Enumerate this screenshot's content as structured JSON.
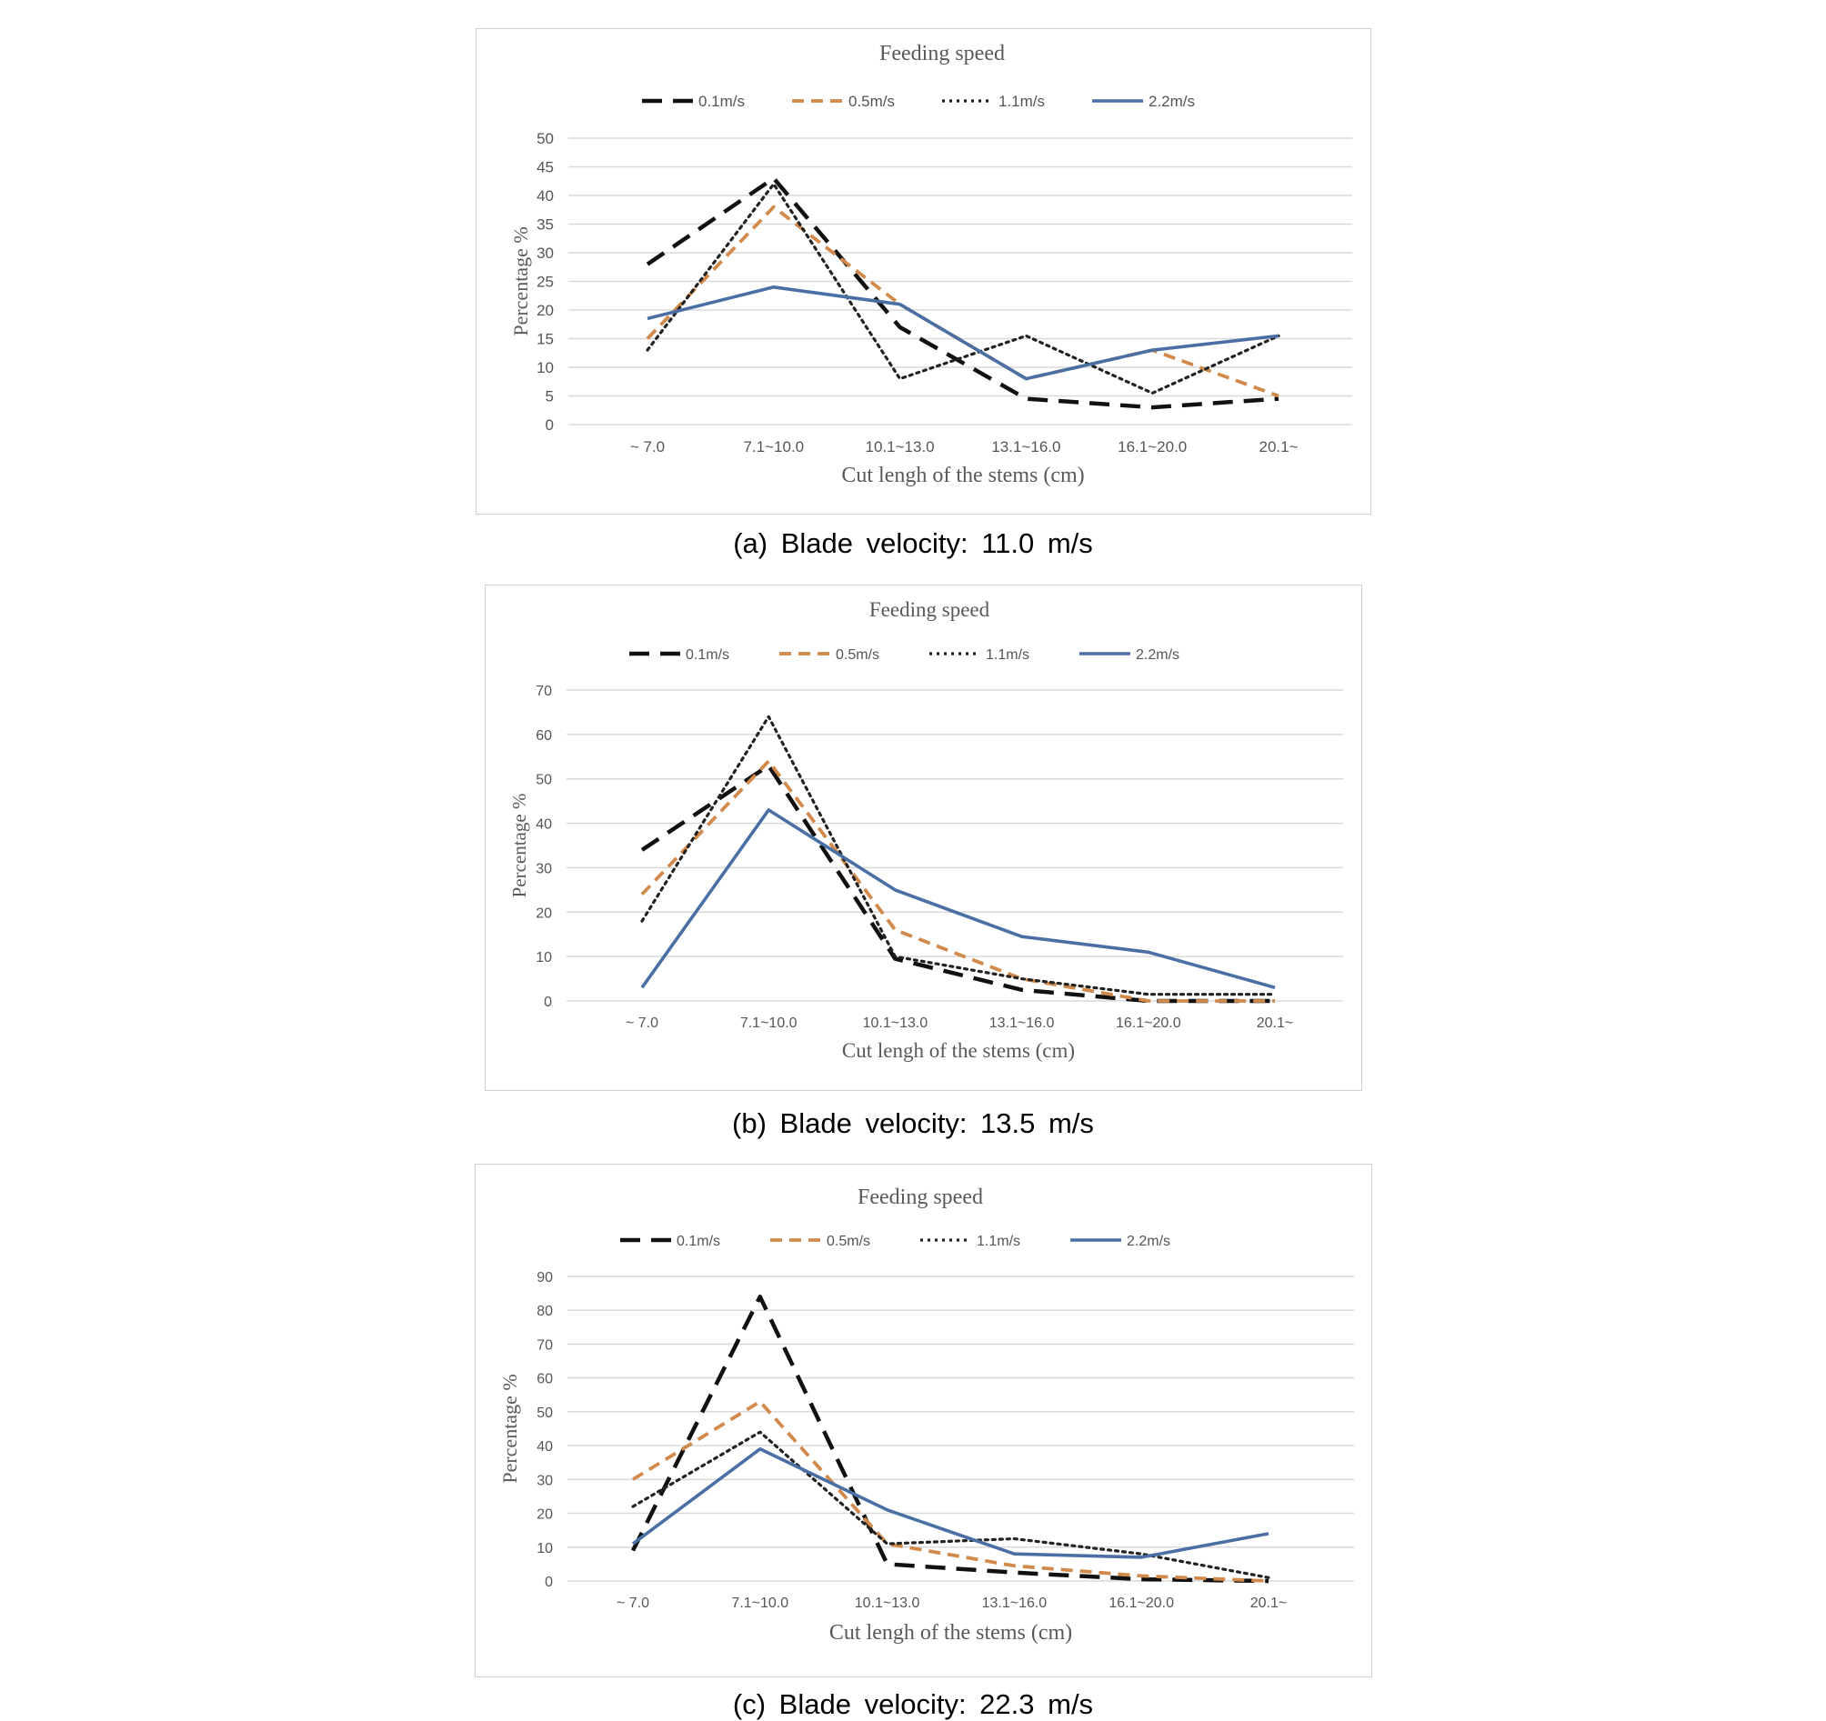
{
  "colors": {
    "series": [
      "#111111",
      "#d18a4b",
      "#222222",
      "#4a6fa5"
    ],
    "grid": "#d9d9d9",
    "tick_text": "#555555",
    "title_text": "#595959"
  },
  "captions": [
    "(a) Blade velocity: 11.0 m/s",
    "(b) Blade velocity: 13.5 m/s",
    "(c) Blade velocity: 22.3 m/s"
  ],
  "chart_data": [
    {
      "type": "line",
      "title": "Feeding speed",
      "xlabel": "Cut lengh  of the stems (cm)",
      "ylabel": "Percentage %",
      "categories": [
        "~ 7.0",
        "7.1~10.0",
        "10.1~13.0",
        "13.1~16.0",
        "16.1~20.0",
        "20.1~"
      ],
      "ylim": [
        0,
        50
      ],
      "yticks": [
        0,
        5,
        10,
        15,
        20,
        25,
        30,
        35,
        40,
        45,
        50
      ],
      "grid": true,
      "legend": "top",
      "series": [
        {
          "name": "0.1m/s",
          "style": "long-dash",
          "values": [
            28,
            43,
            17,
            4.5,
            3,
            4.5
          ]
        },
        {
          "name": "0.5m/s",
          "style": "dash",
          "values": [
            15,
            38,
            21,
            8,
            13,
            5
          ]
        },
        {
          "name": "1.1m/s",
          "style": "dot",
          "values": [
            13,
            42,
            8,
            15.5,
            5.5,
            15.5
          ]
        },
        {
          "name": "2.2m/s",
          "style": "solid",
          "values": [
            18.5,
            24,
            21,
            8,
            13,
            15.5
          ]
        }
      ]
    },
    {
      "type": "line",
      "title": "Feeding speed",
      "xlabel": "Cut lengh  of the stems (cm)",
      "ylabel": "Percentage %",
      "categories": [
        "~ 7.0",
        "7.1~10.0",
        "10.1~13.0",
        "13.1~16.0",
        "16.1~20.0",
        "20.1~"
      ],
      "ylim": [
        0,
        70
      ],
      "yticks": [
        0,
        10,
        20,
        30,
        40,
        50,
        60,
        70
      ],
      "grid": true,
      "legend": "top",
      "series": [
        {
          "name": "0.1m/s",
          "style": "long-dash",
          "values": [
            34,
            53,
            9.5,
            2.5,
            0,
            0
          ]
        },
        {
          "name": "0.5m/s",
          "style": "dash",
          "values": [
            24,
            54,
            16,
            5,
            0,
            0
          ]
        },
        {
          "name": "1.1m/s",
          "style": "dot",
          "values": [
            18,
            64,
            10,
            5,
            1.5,
            1.5
          ]
        },
        {
          "name": "2.2m/s",
          "style": "solid",
          "values": [
            3,
            43,
            25,
            14.5,
            11,
            3
          ]
        }
      ]
    },
    {
      "type": "line",
      "title": "Feeding speed",
      "xlabel": "Cut lengh  of the stems (cm)",
      "ylabel": "Percentage %",
      "categories": [
        "~ 7.0",
        "7.1~10.0",
        "10.1~13.0",
        "13.1~16.0",
        "16.1~20.0",
        "20.1~"
      ],
      "ylim": [
        0,
        90
      ],
      "yticks": [
        0,
        10,
        20,
        30,
        40,
        50,
        60,
        70,
        80,
        90
      ],
      "grid": true,
      "legend": "top",
      "series": [
        {
          "name": "0.1m/s",
          "style": "long-dash",
          "values": [
            9,
            84,
            5,
            2.5,
            0.5,
            0
          ]
        },
        {
          "name": "0.5m/s",
          "style": "dash",
          "values": [
            30,
            53,
            11,
            4.5,
            1.5,
            0
          ]
        },
        {
          "name": "1.1m/s",
          "style": "dot",
          "values": [
            22,
            44,
            11,
            12.5,
            8,
            1
          ]
        },
        {
          "name": "2.2m/s",
          "style": "solid",
          "values": [
            11,
            39,
            21,
            8,
            7,
            14
          ]
        }
      ]
    }
  ]
}
